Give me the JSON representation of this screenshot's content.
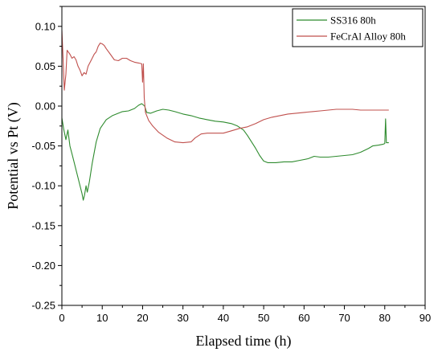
{
  "chart_data": {
    "type": "line",
    "title": "",
    "xlabel": "Elapsed time (h)",
    "ylabel": "Potential vs Pt (V)",
    "xlim": [
      0,
      90
    ],
    "ylim": [
      -0.25,
      0.125
    ],
    "xticks": [
      0,
      10,
      20,
      30,
      40,
      50,
      60,
      70,
      80,
      90
    ],
    "xtick_labels": [
      "0",
      "10",
      "20",
      "30",
      "40",
      "50",
      "60",
      "70",
      "80",
      "90"
    ],
    "yticks": [
      -0.25,
      -0.2,
      -0.15,
      -0.1,
      -0.05,
      0.0,
      0.05,
      0.1
    ],
    "ytick_labels": [
      "-0.25",
      "-0.20",
      "-0.15",
      "-0.10",
      "-0.05",
      "0.00",
      "0.05",
      "0.10"
    ],
    "grid": false,
    "legend_position": "top-right",
    "series": [
      {
        "name": "SS316 80h",
        "color": "#2e8b2e",
        "points": [
          [
            0.0,
            -0.015
          ],
          [
            0.5,
            -0.03
          ],
          [
            1.0,
            -0.042
          ],
          [
            1.5,
            -0.03
          ],
          [
            2.0,
            -0.05
          ],
          [
            2.5,
            -0.06
          ],
          [
            3.0,
            -0.07
          ],
          [
            3.5,
            -0.08
          ],
          [
            4.0,
            -0.09
          ],
          [
            4.5,
            -0.1
          ],
          [
            5.0,
            -0.11
          ],
          [
            5.3,
            -0.118
          ],
          [
            5.6,
            -0.112
          ],
          [
            6.0,
            -0.1
          ],
          [
            6.3,
            -0.108
          ],
          [
            6.8,
            -0.095
          ],
          [
            7.5,
            -0.072
          ],
          [
            8.5,
            -0.045
          ],
          [
            9.5,
            -0.028
          ],
          [
            11.0,
            -0.017
          ],
          [
            12.5,
            -0.012
          ],
          [
            14.0,
            -0.009
          ],
          [
            15.0,
            -0.007
          ],
          [
            16.5,
            -0.006
          ],
          [
            18.0,
            -0.003
          ],
          [
            19.0,
            0.001
          ],
          [
            19.8,
            0.003
          ],
          [
            20.5,
            0.0
          ],
          [
            21.0,
            -0.008
          ],
          [
            22.0,
            -0.009
          ],
          [
            23.5,
            -0.006
          ],
          [
            25.0,
            -0.004
          ],
          [
            26.5,
            -0.005
          ],
          [
            28.0,
            -0.007
          ],
          [
            30.0,
            -0.01
          ],
          [
            32.0,
            -0.012
          ],
          [
            34.0,
            -0.015
          ],
          [
            36.0,
            -0.017
          ],
          [
            38.0,
            -0.019
          ],
          [
            40.0,
            -0.02
          ],
          [
            42.0,
            -0.022
          ],
          [
            43.5,
            -0.025
          ],
          [
            45.0,
            -0.03
          ],
          [
            46.0,
            -0.037
          ],
          [
            47.0,
            -0.045
          ],
          [
            48.0,
            -0.053
          ],
          [
            49.0,
            -0.062
          ],
          [
            50.0,
            -0.069
          ],
          [
            51.0,
            -0.071
          ],
          [
            53.0,
            -0.071
          ],
          [
            55.0,
            -0.07
          ],
          [
            57.0,
            -0.07
          ],
          [
            59.0,
            -0.068
          ],
          [
            61.0,
            -0.066
          ],
          [
            62.5,
            -0.063
          ],
          [
            64.0,
            -0.064
          ],
          [
            66.0,
            -0.064
          ],
          [
            68.0,
            -0.063
          ],
          [
            70.0,
            -0.062
          ],
          [
            72.0,
            -0.061
          ],
          [
            74.0,
            -0.058
          ],
          [
            76.0,
            -0.053
          ],
          [
            77.0,
            -0.05
          ],
          [
            78.5,
            -0.049
          ],
          [
            79.5,
            -0.048
          ],
          [
            80.0,
            -0.047
          ],
          [
            80.2,
            -0.016
          ],
          [
            80.4,
            -0.046
          ],
          [
            81.0,
            -0.046
          ]
        ]
      },
      {
        "name": "FeCrAl Alloy 80h",
        "color": "#c0504d",
        "points": [
          [
            0.0,
            0.095
          ],
          [
            0.3,
            0.06
          ],
          [
            0.6,
            0.02
          ],
          [
            1.0,
            0.04
          ],
          [
            1.3,
            0.07
          ],
          [
            2.0,
            0.065
          ],
          [
            2.5,
            0.06
          ],
          [
            3.0,
            0.062
          ],
          [
            3.5,
            0.058
          ],
          [
            4.0,
            0.05
          ],
          [
            4.5,
            0.045
          ],
          [
            5.0,
            0.038
          ],
          [
            5.5,
            0.042
          ],
          [
            6.0,
            0.04
          ],
          [
            6.5,
            0.05
          ],
          [
            7.0,
            0.055
          ],
          [
            7.5,
            0.06
          ],
          [
            8.0,
            0.065
          ],
          [
            8.5,
            0.068
          ],
          [
            9.0,
            0.075
          ],
          [
            9.5,
            0.079
          ],
          [
            10.0,
            0.078
          ],
          [
            10.5,
            0.076
          ],
          [
            11.0,
            0.072
          ],
          [
            12.0,
            0.065
          ],
          [
            13.0,
            0.058
          ],
          [
            14.0,
            0.057
          ],
          [
            15.0,
            0.06
          ],
          [
            16.0,
            0.06
          ],
          [
            17.0,
            0.057
          ],
          [
            18.0,
            0.055
          ],
          [
            19.0,
            0.054
          ],
          [
            19.8,
            0.053
          ],
          [
            20.0,
            0.03
          ],
          [
            20.2,
            0.053
          ],
          [
            20.4,
            0.01
          ],
          [
            20.7,
            -0.008
          ],
          [
            21.5,
            -0.018
          ],
          [
            22.5,
            -0.025
          ],
          [
            24.0,
            -0.033
          ],
          [
            26.0,
            -0.04
          ],
          [
            28.0,
            -0.045
          ],
          [
            30.0,
            -0.046
          ],
          [
            32.0,
            -0.045
          ],
          [
            33.0,
            -0.04
          ],
          [
            34.5,
            -0.035
          ],
          [
            36.0,
            -0.034
          ],
          [
            38.0,
            -0.034
          ],
          [
            40.0,
            -0.034
          ],
          [
            42.0,
            -0.031
          ],
          [
            44.0,
            -0.028
          ],
          [
            46.0,
            -0.026
          ],
          [
            48.0,
            -0.022
          ],
          [
            50.0,
            -0.017
          ],
          [
            52.0,
            -0.014
          ],
          [
            54.0,
            -0.012
          ],
          [
            56.0,
            -0.01
          ],
          [
            58.0,
            -0.009
          ],
          [
            60.0,
            -0.008
          ],
          [
            62.0,
            -0.007
          ],
          [
            64.0,
            -0.006
          ],
          [
            66.0,
            -0.005
          ],
          [
            68.0,
            -0.004
          ],
          [
            70.0,
            -0.004
          ],
          [
            72.0,
            -0.004
          ],
          [
            74.0,
            -0.005
          ],
          [
            76.0,
            -0.005
          ],
          [
            78.0,
            -0.005
          ],
          [
            80.0,
            -0.005
          ],
          [
            81.0,
            -0.005
          ]
        ]
      }
    ]
  }
}
